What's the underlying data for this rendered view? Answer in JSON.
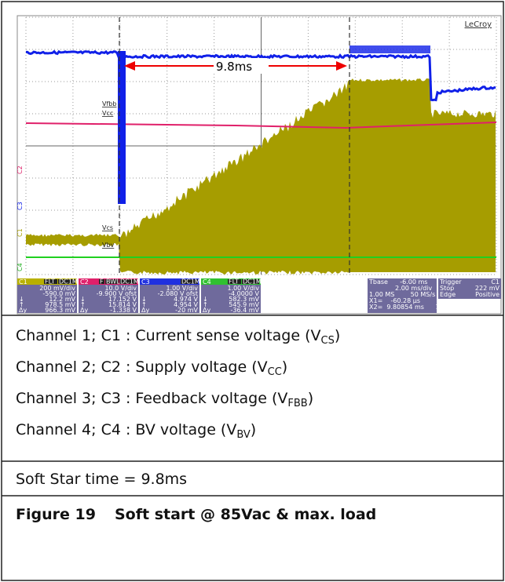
{
  "scope": {
    "brand": "LeCroy",
    "cursor_label": "9.8ms",
    "trace_labels": [
      "Vfbb",
      "Vcc",
      "Vcs",
      "Vbv"
    ],
    "side_labels": [
      "C2",
      "C3",
      "C1",
      "C4"
    ],
    "symbols": [
      "↓",
      "↑",
      "Δy"
    ],
    "boxes": [
      {
        "name": "C1",
        "badges": [
          "FLT",
          "DC1M"
        ],
        "lines": [
          "200 mV/div",
          "-590.0 mV",
          "12.2 mV",
          "978.5 mV",
          "966.3 mV"
        ]
      },
      {
        "name": "C2",
        "badges": [
          "F",
          "BWL",
          "DC1M"
        ],
        "lines": [
          "10.0 V/div",
          "-9.900 V ofst",
          "17.152 V",
          "15.814 V",
          "-1.338 V"
        ]
      },
      {
        "name": "C3",
        "badges": [
          "DC1M"
        ],
        "lines": [
          "1.00 V/div",
          "-2.080 V ofst",
          "4.974 V",
          "4.954 V",
          "-20 mV"
        ]
      },
      {
        "name": "C4",
        "badges": [
          "FLT",
          "DC1M"
        ],
        "lines": [
          "1.00 V/div",
          "-4.0000 V",
          "582.3 mV",
          "545.9 mV",
          "-36.4 mV"
        ]
      }
    ],
    "timebase": [
      "Tbase      -6.00 ms",
      "             2.00 ms/div",
      "1.00 MS        50 MS/s",
      "X1=    -60.28 µs",
      "X2=  9.80854 ms"
    ],
    "delta": [
      "ΔX=    9.86882 ms",
      "1/ΔX=  101.3292 Hz"
    ],
    "trigger": [
      "Trigger",
      "C1",
      "Stop",
      "222 mV",
      "Edge",
      "Positive"
    ]
  },
  "channels": [
    {
      "text": "Channel 1; C1 : Current sense voltage (V",
      "sub": "CS",
      "tail": ")"
    },
    {
      "text": "Channel 2; C2 : Supply voltage (V",
      "sub": "CC",
      "tail": ")"
    },
    {
      "text": "Channel 3; C3 : Feedback voltage (V",
      "sub": "FBB",
      "tail": ")"
    },
    {
      "text": "Channel 4; C4 : BV voltage (V",
      "sub": "BV",
      "tail": ")"
    }
  ],
  "note": "Soft Star time = 9.8ms",
  "caption": {
    "number": "Figure 19",
    "title": "Soft start @ 85Vac & max. load"
  }
}
